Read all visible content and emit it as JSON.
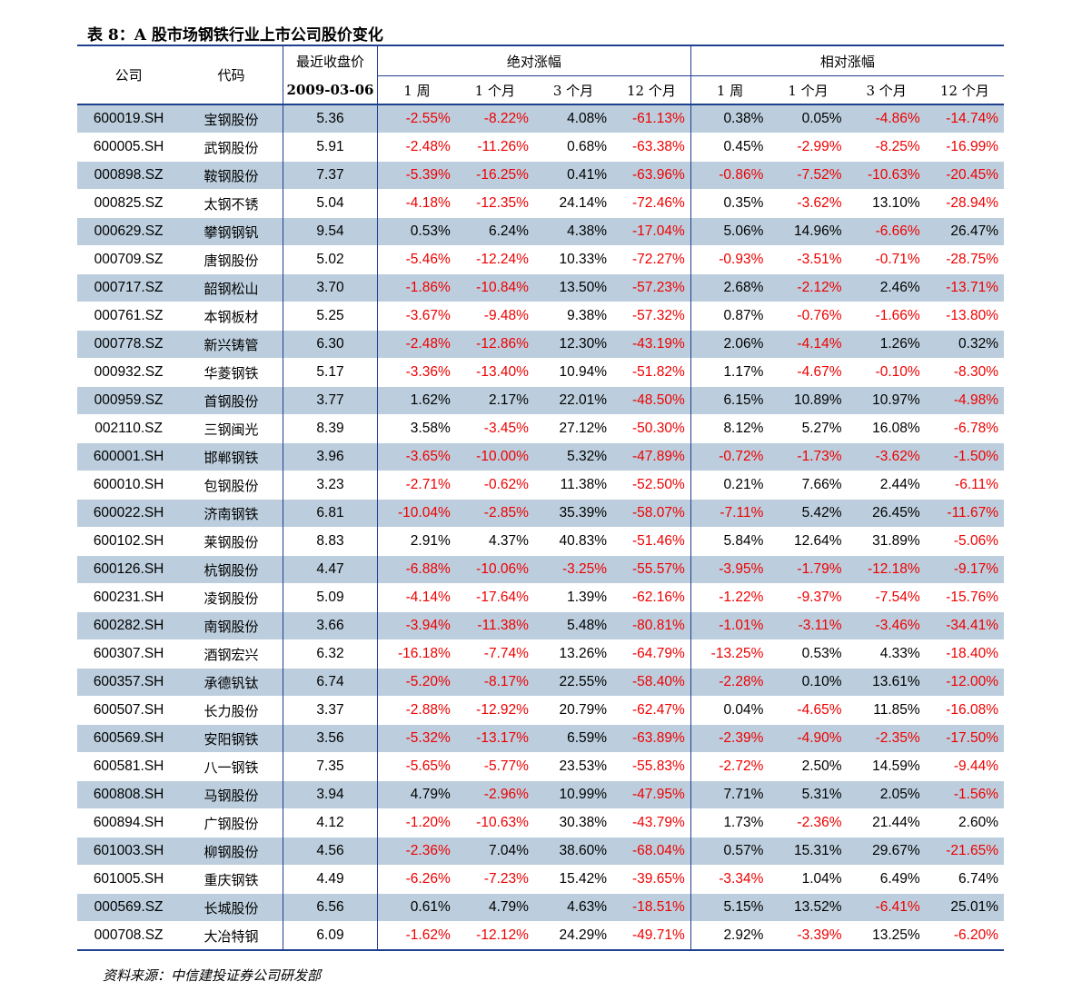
{
  "title": "表 8：A 股市场钢铁行业上市公司股价变化",
  "headers": {
    "company": "公司",
    "code": "代码",
    "price_top": "最近收盘价",
    "price_date": "2009-03-06",
    "abs_group": "绝对涨幅",
    "rel_group": "相对涨幅",
    "periods": [
      "1 周",
      "1 个月",
      "3 个月",
      "12 个月"
    ]
  },
  "rows": [
    [
      "600019.SH",
      "宝钢股份",
      "5.36",
      "-2.55%",
      "-8.22%",
      "4.08%",
      "-61.13%",
      "0.38%",
      "0.05%",
      "-4.86%",
      "-14.74%"
    ],
    [
      "600005.SH",
      "武钢股份",
      "5.91",
      "-2.48%",
      "-11.26%",
      "0.68%",
      "-63.38%",
      "0.45%",
      "-2.99%",
      "-8.25%",
      "-16.99%"
    ],
    [
      "000898.SZ",
      "鞍钢股份",
      "7.37",
      "-5.39%",
      "-16.25%",
      "0.41%",
      "-63.96%",
      "-0.86%",
      "-7.52%",
      "-10.63%",
      "-20.45%"
    ],
    [
      "000825.SZ",
      "太钢不锈",
      "5.04",
      "-4.18%",
      "-12.35%",
      "24.14%",
      "-72.46%",
      "0.35%",
      "-3.62%",
      "13.10%",
      "-28.94%"
    ],
    [
      "000629.SZ",
      "攀钢钢钒",
      "9.54",
      "0.53%",
      "6.24%",
      "4.38%",
      "-17.04%",
      "5.06%",
      "14.96%",
      "-6.66%",
      "26.47%"
    ],
    [
      "000709.SZ",
      "唐钢股份",
      "5.02",
      "-5.46%",
      "-12.24%",
      "10.33%",
      "-72.27%",
      "-0.93%",
      "-3.51%",
      "-0.71%",
      "-28.75%"
    ],
    [
      "000717.SZ",
      "韶钢松山",
      "3.70",
      "-1.86%",
      "-10.84%",
      "13.50%",
      "-57.23%",
      "2.68%",
      "-2.12%",
      "2.46%",
      "-13.71%"
    ],
    [
      "000761.SZ",
      "本钢板材",
      "5.25",
      "-3.67%",
      "-9.48%",
      "9.38%",
      "-57.32%",
      "0.87%",
      "-0.76%",
      "-1.66%",
      "-13.80%"
    ],
    [
      "000778.SZ",
      "新兴铸管",
      "6.30",
      "-2.48%",
      "-12.86%",
      "12.30%",
      "-43.19%",
      "2.06%",
      "-4.14%",
      "1.26%",
      "0.32%"
    ],
    [
      "000932.SZ",
      "华菱钢铁",
      "5.17",
      "-3.36%",
      "-13.40%",
      "10.94%",
      "-51.82%",
      "1.17%",
      "-4.67%",
      "-0.10%",
      "-8.30%"
    ],
    [
      "000959.SZ",
      "首钢股份",
      "3.77",
      "1.62%",
      "2.17%",
      "22.01%",
      "-48.50%",
      "6.15%",
      "10.89%",
      "10.97%",
      "-4.98%"
    ],
    [
      "002110.SZ",
      "三钢闽光",
      "8.39",
      "3.58%",
      "-3.45%",
      "27.12%",
      "-50.30%",
      "8.12%",
      "5.27%",
      "16.08%",
      "-6.78%"
    ],
    [
      "600001.SH",
      "邯郸钢铁",
      "3.96",
      "-3.65%",
      "-10.00%",
      "5.32%",
      "-47.89%",
      "-0.72%",
      "-1.73%",
      "-3.62%",
      "-1.50%"
    ],
    [
      "600010.SH",
      "包钢股份",
      "3.23",
      "-2.71%",
      "-0.62%",
      "11.38%",
      "-52.50%",
      "0.21%",
      "7.66%",
      "2.44%",
      "-6.11%"
    ],
    [
      "600022.SH",
      "济南钢铁",
      "6.81",
      "-10.04%",
      "-2.85%",
      "35.39%",
      "-58.07%",
      "-7.11%",
      "5.42%",
      "26.45%",
      "-11.67%"
    ],
    [
      "600102.SH",
      "莱钢股份",
      "8.83",
      "2.91%",
      "4.37%",
      "40.83%",
      "-51.46%",
      "5.84%",
      "12.64%",
      "31.89%",
      "-5.06%"
    ],
    [
      "600126.SH",
      "杭钢股份",
      "4.47",
      "-6.88%",
      "-10.06%",
      "-3.25%",
      "-55.57%",
      "-3.95%",
      "-1.79%",
      "-12.18%",
      "-9.17%"
    ],
    [
      "600231.SH",
      "凌钢股份",
      "5.09",
      "-4.14%",
      "-17.64%",
      "1.39%",
      "-62.16%",
      "-1.22%",
      "-9.37%",
      "-7.54%",
      "-15.76%"
    ],
    [
      "600282.SH",
      "南钢股份",
      "3.66",
      "-3.94%",
      "-11.38%",
      "5.48%",
      "-80.81%",
      "-1.01%",
      "-3.11%",
      "-3.46%",
      "-34.41%"
    ],
    [
      "600307.SH",
      "酒钢宏兴",
      "6.32",
      "-16.18%",
      "-7.74%",
      "13.26%",
      "-64.79%",
      "-13.25%",
      "0.53%",
      "4.33%",
      "-18.40%"
    ],
    [
      "600357.SH",
      "承德钒钛",
      "6.74",
      "-5.20%",
      "-8.17%",
      "22.55%",
      "-58.40%",
      "-2.28%",
      "0.10%",
      "13.61%",
      "-12.00%"
    ],
    [
      "600507.SH",
      "长力股份",
      "3.37",
      "-2.88%",
      "-12.92%",
      "20.79%",
      "-62.47%",
      "0.04%",
      "-4.65%",
      "11.85%",
      "-16.08%"
    ],
    [
      "600569.SH",
      "安阳钢铁",
      "3.56",
      "-5.32%",
      "-13.17%",
      "6.59%",
      "-63.89%",
      "-2.39%",
      "-4.90%",
      "-2.35%",
      "-17.50%"
    ],
    [
      "600581.SH",
      "八一钢铁",
      "7.35",
      "-5.65%",
      "-5.77%",
      "23.53%",
      "-55.83%",
      "-2.72%",
      "2.50%",
      "14.59%",
      "-9.44%"
    ],
    [
      "600808.SH",
      "马钢股份",
      "3.94",
      "4.79%",
      "-2.96%",
      "10.99%",
      "-47.95%",
      "7.71%",
      "5.31%",
      "2.05%",
      "-1.56%"
    ],
    [
      "600894.SH",
      "广钢股份",
      "4.12",
      "-1.20%",
      "-10.63%",
      "30.38%",
      "-43.79%",
      "1.73%",
      "-2.36%",
      "21.44%",
      "2.60%"
    ],
    [
      "601003.SH",
      "柳钢股份",
      "4.56",
      "-2.36%",
      "7.04%",
      "38.60%",
      "-68.04%",
      "0.57%",
      "15.31%",
      "29.67%",
      "-21.65%"
    ],
    [
      "601005.SH",
      "重庆钢铁",
      "4.49",
      "-6.26%",
      "-7.23%",
      "15.42%",
      "-39.65%",
      "-3.34%",
      "1.04%",
      "6.49%",
      "6.74%"
    ],
    [
      "000569.SZ",
      "长城股份",
      "6.56",
      "0.61%",
      "4.79%",
      "4.63%",
      "-18.51%",
      "5.15%",
      "13.52%",
      "-6.41%",
      "25.01%"
    ],
    [
      "000708.SZ",
      "大冶特钢",
      "6.09",
      "-1.62%",
      "-12.12%",
      "24.29%",
      "-49.71%",
      "2.92%",
      "-3.39%",
      "13.25%",
      "-6.20%"
    ]
  ],
  "source": "资料来源：中信建投证券公司研发部",
  "colors": {
    "negative": "#ee0000",
    "shade": "#bccedd",
    "rule": "#1f3f8f"
  }
}
